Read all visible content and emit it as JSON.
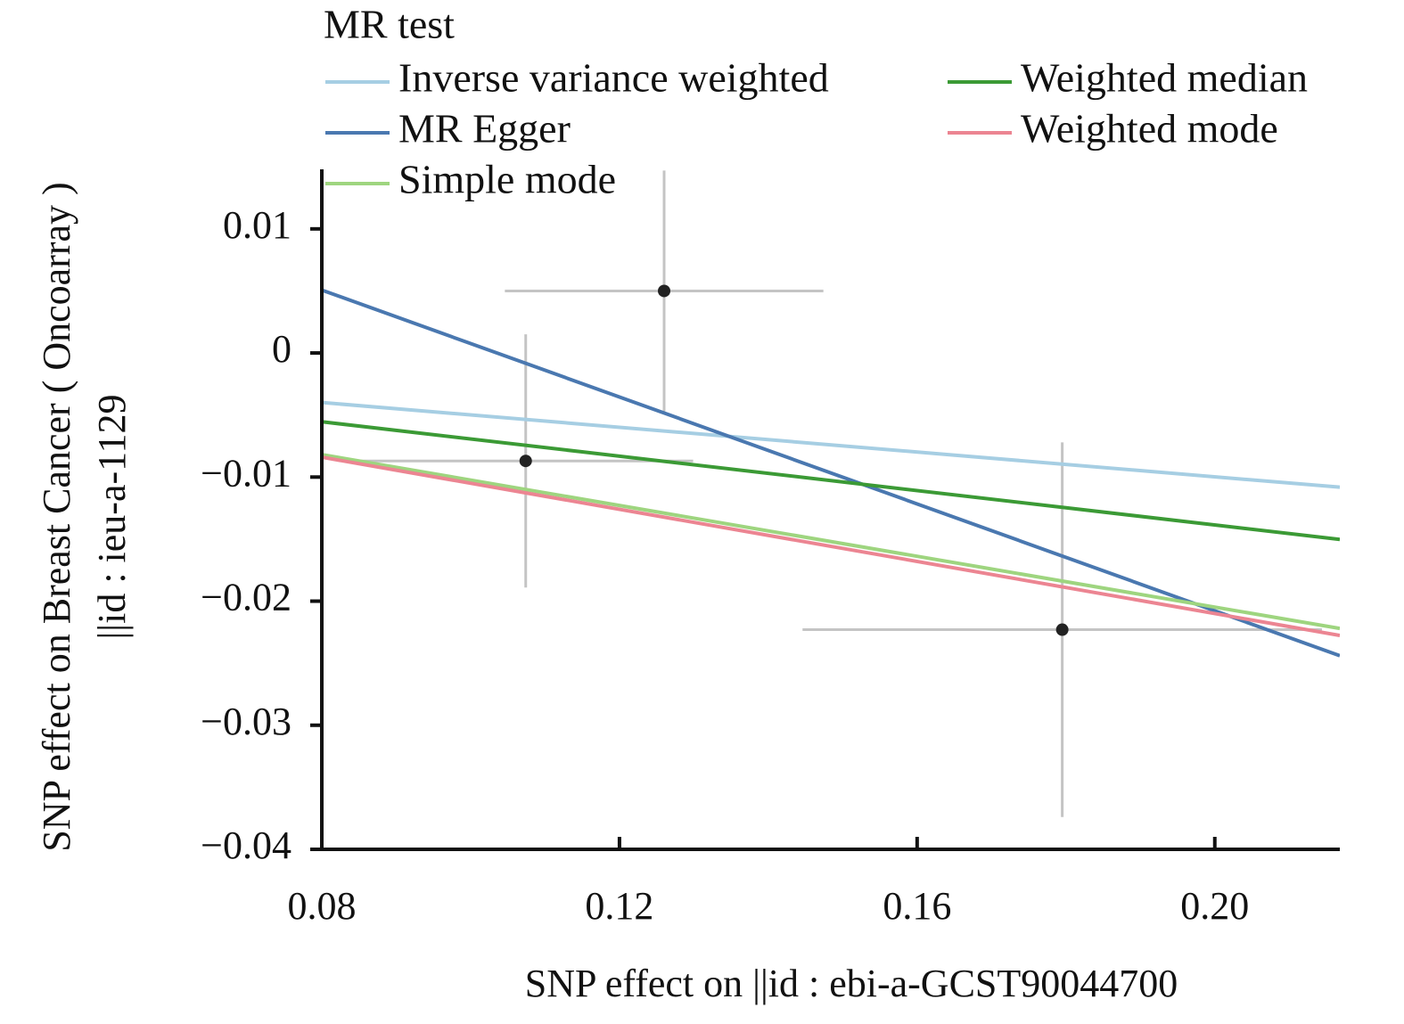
{
  "chart_data": {
    "type": "scatter",
    "x_label": "SNP effect on ||id : ebi-a-GCST90044700",
    "y_label": [
      "SNP effect on Breast Cancer ( Oncoarray )",
      "||id : ieu-a-1129"
    ],
    "legend_title": "MR test",
    "points": {
      "x": [
        0.1074,
        0.126,
        0.1795
      ],
      "y": [
        -0.0087,
        0.005,
        -0.0223
      ],
      "x_se": [
        0.0225,
        0.0214,
        0.0349
      ],
      "y_se": [
        0.0102,
        0.0097,
        0.0151
      ]
    },
    "series": [
      {
        "name": "Inverse variance weighted",
        "color": "#a6cee3",
        "intercept": 0,
        "slope": -0.0499
      },
      {
        "name": "MR Egger",
        "color": "#4a78b0",
        "intercept": 0.0223,
        "slope": -0.2154
      },
      {
        "name": "Simple mode",
        "color": "#9ed57f",
        "intercept": 0,
        "slope": -0.1024
      },
      {
        "name": "Weighted median",
        "color": "#3b9a35",
        "intercept": 0,
        "slope": -0.0693
      },
      {
        "name": "Weighted mode",
        "color": "#ec8592",
        "intercept": 0,
        "slope": -0.105
      }
    ],
    "xlim": [
      0.08,
      0.2168
    ],
    "ylim": [
      -0.04,
      0.0148
    ],
    "xticks": [
      0.08,
      0.12,
      0.16,
      {
        "value": 0.2,
        "label": "0.20"
      }
    ],
    "yticks": [
      0.01,
      0,
      {
        "value": -0.01,
        "label": "−0.01"
      },
      {
        "value": -0.02,
        "label": "−0.02"
      },
      {
        "value": -0.03,
        "label": "−0.03"
      },
      {
        "value": -0.04,
        "label": "−0.04"
      }
    ]
  }
}
